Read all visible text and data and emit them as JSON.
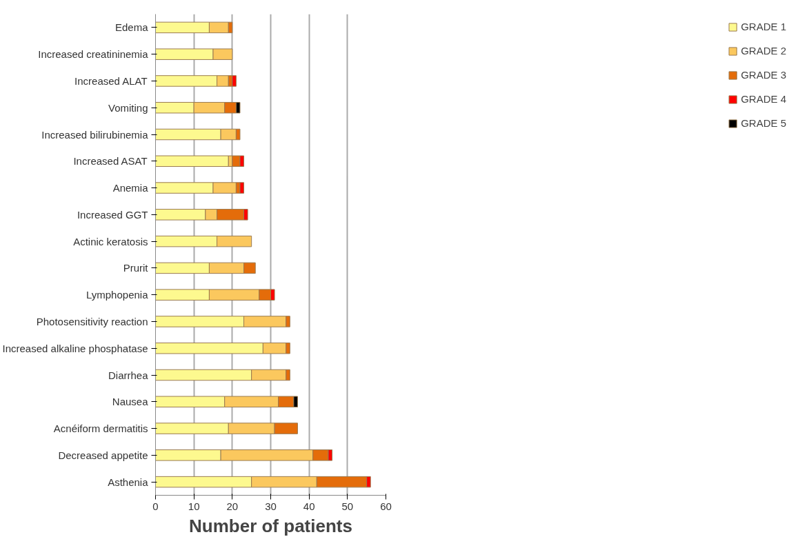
{
  "chart_data": {
    "type": "bar",
    "orientation": "horizontal",
    "stacked": true,
    "xlabel": "Number of patients",
    "categories": [
      "Edema",
      "Increased creatininemia",
      "Increased ALAT",
      "Vomiting",
      "Increased bilirubinemia",
      "Increased ASAT",
      "Anemia",
      "Increased GGT",
      "Actinic keratosis",
      "Prurit",
      "Lymphopenia",
      "Photosensitivity reaction",
      "Increased alkaline phosphatase",
      "Diarrhea",
      "Nausea",
      "Acnéiform dermatitis",
      "Decreased appetite",
      "Asthenia"
    ],
    "series": [
      {
        "name": "GRADE 1",
        "color": "#fdf98f",
        "values": [
          14,
          15,
          16,
          10,
          17,
          19,
          15,
          13,
          16,
          14,
          14,
          23,
          28,
          25,
          18,
          19,
          17,
          25
        ]
      },
      {
        "name": "GRADE 2",
        "color": "#fbc85e",
        "values": [
          5,
          5,
          3,
          8,
          4,
          1,
          6,
          3,
          9,
          9,
          13,
          11,
          6,
          9,
          14,
          12,
          24,
          17
        ]
      },
      {
        "name": "GRADE 3",
        "color": "#e46c0a",
        "values": [
          1,
          0,
          1,
          3,
          1,
          2,
          1,
          7,
          0,
          3,
          3,
          1,
          1,
          1,
          4,
          6,
          4,
          13
        ]
      },
      {
        "name": "GRADE 4",
        "color": "#ff0000",
        "values": [
          0,
          0,
          1,
          0,
          0,
          1,
          1,
          1,
          0,
          0,
          1,
          0,
          0,
          0,
          0,
          0,
          1,
          1
        ]
      },
      {
        "name": "GRADE 5",
        "color": "#000000",
        "values": [
          0,
          0,
          0,
          1,
          0,
          0,
          0,
          0,
          0,
          0,
          0,
          0,
          0,
          0,
          1,
          0,
          0,
          0
        ]
      }
    ],
    "xlim": [
      0,
      60
    ],
    "xticks": [
      0,
      10,
      20,
      30,
      40,
      50,
      60
    ],
    "grid": "x",
    "legend": "right"
  }
}
